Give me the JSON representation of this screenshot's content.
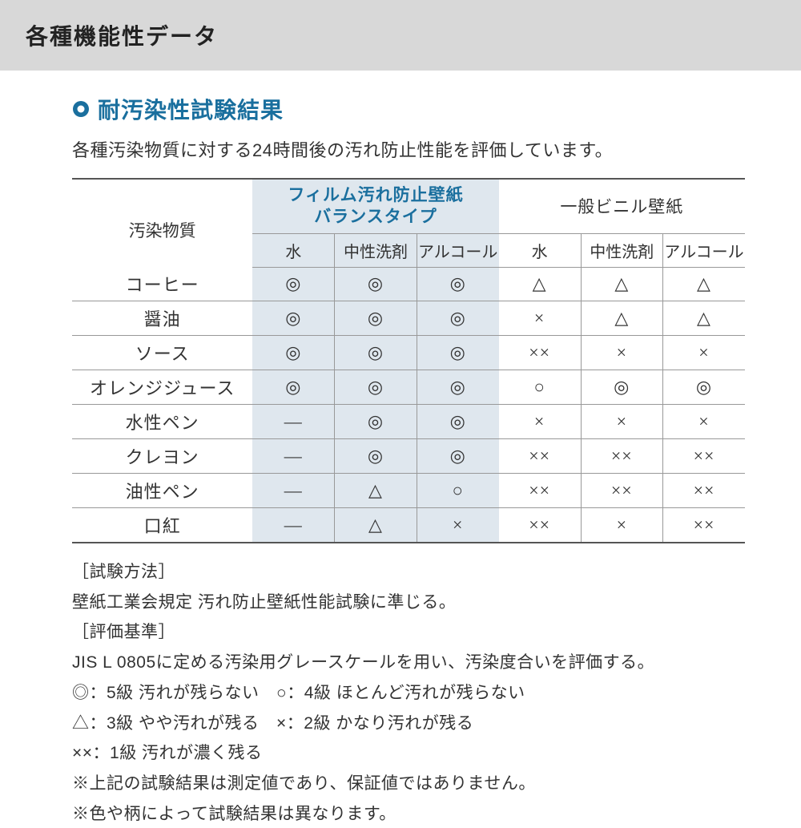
{
  "header": {
    "title": "各種機能性データ"
  },
  "section": {
    "bullet_color_outer": "#1a6f9e",
    "bullet_color_inner": "#ffffff",
    "subtitle": "耐汚染性試験結果",
    "lead": "各種汚染物質に対する24時間後の汚れ防止性能を評価しています。"
  },
  "table": {
    "row_header": "汚染物質",
    "group1": {
      "title_l1": "フィルム汚れ防止壁紙",
      "title_l2": "バランスタイプ",
      "tint_color": "#dfe7ee"
    },
    "group2": {
      "title": "一般ビニル壁紙"
    },
    "subcols": [
      "水",
      "中性洗剤",
      "アルコール",
      "水",
      "中性洗剤",
      "アルコール"
    ],
    "rows": [
      {
        "label": "コーヒー",
        "cells": [
          "◎",
          "◎",
          "◎",
          "△",
          "△",
          "△"
        ]
      },
      {
        "label": "醤油",
        "cells": [
          "◎",
          "◎",
          "◎",
          "×",
          "△",
          "△"
        ]
      },
      {
        "label": "ソース",
        "cells": [
          "◎",
          "◎",
          "◎",
          "××",
          "×",
          "×"
        ]
      },
      {
        "label": "オレンジジュース",
        "cells": [
          "◎",
          "◎",
          "◎",
          "○",
          "◎",
          "◎"
        ]
      },
      {
        "label": "水性ペン",
        "cells": [
          "―",
          "◎",
          "◎",
          "×",
          "×",
          "×"
        ]
      },
      {
        "label": "クレヨン",
        "cells": [
          "―",
          "◎",
          "◎",
          "××",
          "××",
          "××"
        ]
      },
      {
        "label": "油性ペン",
        "cells": [
          "―",
          "△",
          "○",
          "××",
          "××",
          "××"
        ]
      },
      {
        "label": "口紅",
        "cells": [
          "―",
          "△",
          "×",
          "××",
          "×",
          "××"
        ]
      }
    ],
    "border_color_heavy": "#555555",
    "border_color_light": "#999999"
  },
  "notes": {
    "l1": "［試験方法］",
    "l2": "壁紙工業会規定 汚れ防止壁紙性能試験に準じる。",
    "l3": "［評価基準］",
    "l4": "JIS L 0805に定める汚染用グレースケールを用い、汚染度合いを評価する。",
    "l5": "◎：5級 汚れが残らない　○：4級 ほとんど汚れが残らない",
    "l6": "△：3級 やや汚れが残る　×：2級 かなり汚れが残る",
    "l7": "××：1級 汚れが濃く残る",
    "l8": "※上記の試験結果は測定値であり、保証値ではありません。",
    "l9": "※色や柄によって試験結果は異なります。"
  }
}
